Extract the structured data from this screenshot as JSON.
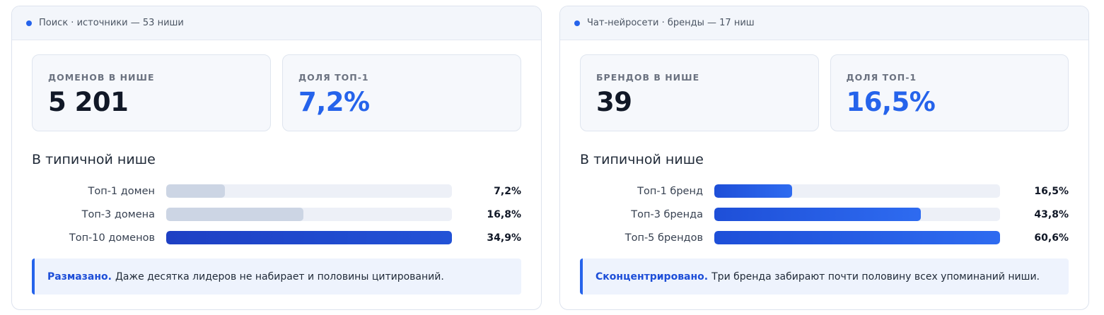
{
  "panels": [
    {
      "header": "Поиск · источники — 53 ниши",
      "stat1": {
        "label": "ДОМЕНОВ В НИШЕ",
        "value": "5 201"
      },
      "stat2": {
        "label": "ДОЛЯ ТОП-1",
        "value": "7,2%"
      },
      "section_title": "В типичной нише",
      "rows": [
        {
          "label": "Топ-1 домен",
          "value": "7,2%",
          "fill": 0.206
        },
        {
          "label": "Топ-3 домена",
          "value": "16,8%",
          "fill": 0.479
        },
        {
          "label": "Топ-10 доменов",
          "value": "34,9%",
          "fill": 1.0
        }
      ],
      "note": {
        "strong": "Размазано.",
        "text": "Даже десятка лидеров не набирает и половины цитирований."
      }
    },
    {
      "header": "Чат-нейросети · бренды — 17 ниш",
      "stat1": {
        "label": "БРЕНДОВ В НИШЕ",
        "value": "39"
      },
      "stat2": {
        "label": "ДОЛЯ ТОП-1",
        "value": "16,5%"
      },
      "section_title": "В типичной нише",
      "rows": [
        {
          "label": "Топ-1 бренд",
          "value": "16,5%",
          "fill": 0.272
        },
        {
          "label": "Топ-3 бренда",
          "value": "43,8%",
          "fill": 0.722
        },
        {
          "label": "Топ-5 брендов",
          "value": "60,6%",
          "fill": 1.0
        }
      ],
      "note": {
        "strong": "Сконцентрировано.",
        "text": "Три бренда забирают почти половину всех упоминаний ниши."
      }
    }
  ],
  "colors": {
    "accent": "#2563eb",
    "bar_grey": "#ccd5e4",
    "bar_dark": "#1e40c4"
  }
}
